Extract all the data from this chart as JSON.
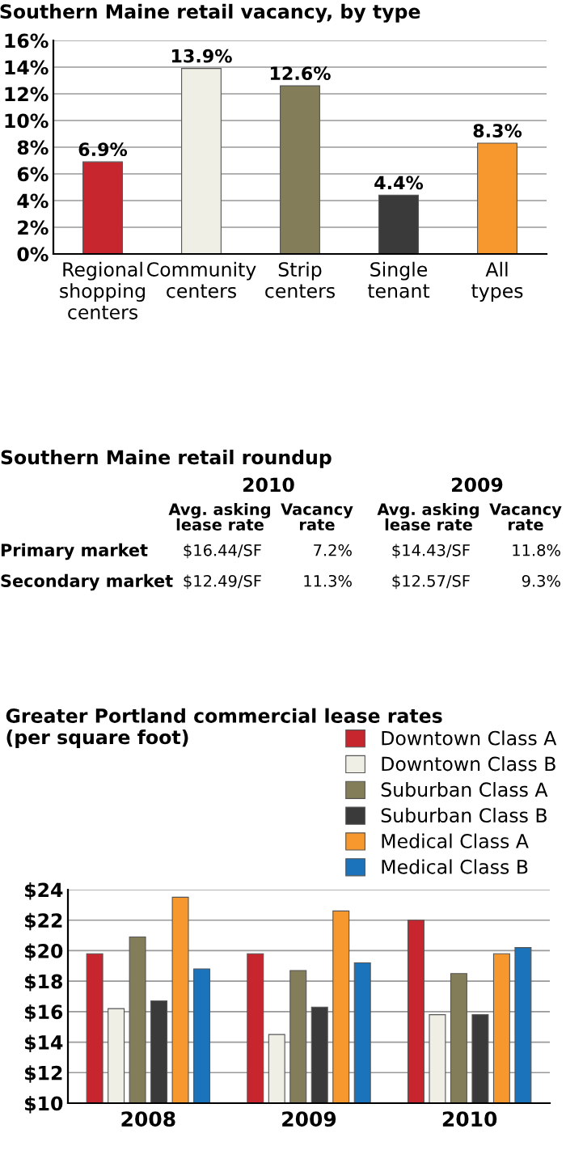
{
  "chart_data": [
    {
      "type": "bar",
      "title": "Southern Maine retail vacancy, by type",
      "categories": [
        "Regional shopping centers",
        "Community centers",
        "Strip centers",
        "Single tenant",
        "All types"
      ],
      "values": [
        6.9,
        13.9,
        12.6,
        4.4,
        8.3
      ],
      "colors": [
        "#c8262e",
        "#f0efe6",
        "#847d5a",
        "#3a3a3a",
        "#f7982e"
      ],
      "value_labels": [
        "6.9%",
        "13.9%",
        "12.6%",
        "4.4%",
        "8.3%"
      ],
      "ylim": [
        0,
        16
      ],
      "yticks": [
        {
          "value": 0,
          "label": "0%"
        },
        {
          "value": 2,
          "label": "2%"
        },
        {
          "value": 4,
          "label": "4%"
        },
        {
          "value": 6,
          "label": "6%"
        },
        {
          "value": 8,
          "label": "8%"
        },
        {
          "value": 10,
          "label": "10%"
        },
        {
          "value": 12,
          "label": "12%"
        },
        {
          "value": 14,
          "label": "14%"
        },
        {
          "value": 16,
          "label": "16%"
        }
      ],
      "grid": "y"
    },
    {
      "type": "other",
      "title": "Southern Maine retail roundup",
      "annotations": [
        "2010",
        "2009"
      ],
      "categories": [
        "Avg. asking lease rate",
        "Vacancy rate",
        "Avg. asking lease rate",
        "Vacancy rate"
      ],
      "y_categories": [
        "Primary market",
        "Secondary market"
      ],
      "cell_labels": [
        [
          "$16.44/SF",
          "7.2%",
          "$14.43/SF",
          "11.8%"
        ],
        [
          "$12.49/SF",
          "11.3%",
          "$12.57/SF",
          "9.3%"
        ]
      ]
    },
    {
      "type": "bar",
      "title": "Greater Portland commercial lease rates\n(per square foot)",
      "categories": [
        "2008",
        "2009",
        "2010"
      ],
      "series": [
        {
          "name": "Downtown Class A",
          "color": "#c8262e",
          "values": [
            19.8,
            19.8,
            22.0
          ]
        },
        {
          "name": "Downtown Class B",
          "color": "#f0efe6",
          "values": [
            16.2,
            14.5,
            15.8
          ]
        },
        {
          "name": "Suburban Class A",
          "color": "#847d5a",
          "values": [
            20.9,
            18.7,
            18.5
          ]
        },
        {
          "name": "Suburban Class B",
          "color": "#3a3a3a",
          "values": [
            16.7,
            16.3,
            15.8
          ]
        },
        {
          "name": "Medical Class A",
          "color": "#f7982e",
          "values": [
            23.5,
            22.6,
            19.8
          ]
        },
        {
          "name": "Medical Class B",
          "color": "#1b73bb",
          "values": [
            18.8,
            19.2,
            20.2
          ]
        }
      ],
      "ylim": [
        10,
        24
      ],
      "yticks": [
        {
          "value": 10,
          "label": "$10"
        },
        {
          "value": 12,
          "label": "$12"
        },
        {
          "value": 14,
          "label": "$14"
        },
        {
          "value": 16,
          "label": "$16"
        },
        {
          "value": 18,
          "label": "$18"
        },
        {
          "value": 20,
          "label": "$20"
        },
        {
          "value": 22,
          "label": "$22"
        },
        {
          "value": 24,
          "label": "$24"
        }
      ],
      "grid": "y",
      "legend": "top right"
    }
  ]
}
